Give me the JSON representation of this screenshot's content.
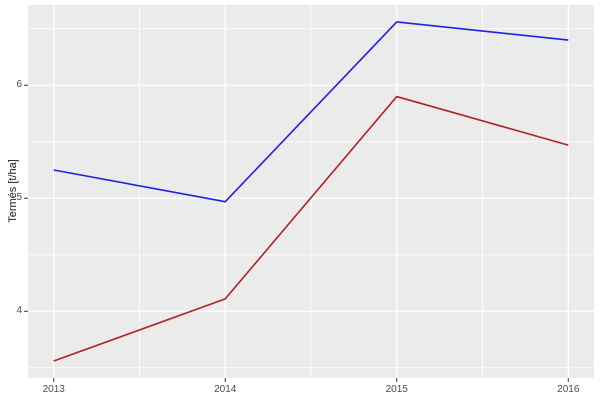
{
  "chart_data": {
    "type": "line",
    "x": [
      2013,
      2014,
      2015,
      2016
    ],
    "series": [
      {
        "name": "blue-series",
        "color": "#2222dd",
        "values": [
          5.25,
          4.97,
          6.56,
          6.4
        ]
      },
      {
        "name": "red-series",
        "color": "#b22222",
        "values": [
          3.56,
          4.11,
          5.9,
          5.47
        ]
      }
    ],
    "title": "",
    "xlabel": "",
    "ylabel": "Termés [t/ha]",
    "xticks": [
      "2013",
      "2014",
      "2015",
      "2016"
    ],
    "xtick_values": [
      2013,
      2014,
      2015,
      2016
    ],
    "yticks": [
      "4",
      "5",
      "6"
    ],
    "ytick_values": [
      4,
      5,
      6
    ],
    "y_minor_values": [
      3.5,
      4.5,
      5.5,
      6.5
    ],
    "x_minor_values": [
      2013.5,
      2014.5,
      2015.5
    ],
    "xlim": [
      2012.85,
      2016.15
    ],
    "ylim": [
      3.41,
      6.71
    ],
    "grid": "major-and-minor",
    "legend": "none"
  },
  "theme": {
    "panel_background": "#ebebeb",
    "gridline_color": "#ffffff",
    "tick_mark_color": "#333333",
    "tick_label_color": "#4d4d4d",
    "axis_title_color": "#1a1a1a",
    "page_background": "#ffffff"
  }
}
